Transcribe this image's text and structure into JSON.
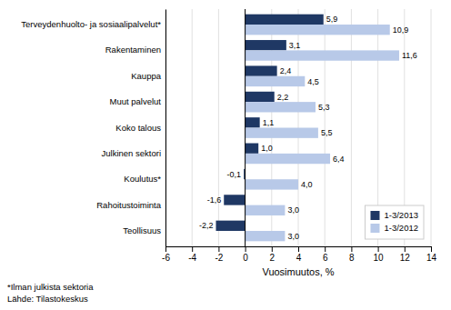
{
  "chart_data": {
    "type": "bar",
    "orientation": "horizontal",
    "categories": [
      "Terveydenhuolto- ja sosiaalipalvelut*",
      "Rakentaminen",
      "Kauppa",
      "Muut palvelut",
      "Koko talous",
      "Julkinen sektori",
      "Koulutus*",
      "Rahoitustoiminta",
      "Teollisuus"
    ],
    "series": [
      {
        "name": "1-3/2013",
        "color": "#1f3864",
        "values": [
          5.9,
          3.1,
          2.4,
          2.2,
          1.1,
          1.0,
          -0.1,
          -1.6,
          -2.2
        ],
        "value_labels": [
          "5,9",
          "3,1",
          "2,4",
          "2,2",
          "1,1",
          "1,0",
          "-0,1",
          "-1,6",
          "-2,2"
        ]
      },
      {
        "name": "1-3/2012",
        "color": "#b8c9e8",
        "values": [
          10.9,
          11.6,
          4.5,
          5.3,
          5.5,
          6.4,
          4.0,
          3.0,
          3.0
        ],
        "value_labels": [
          "10,9",
          "11,6",
          "4,5",
          "5,3",
          "5,5",
          "6,4",
          "4,0",
          "3,0",
          "3,0"
        ]
      }
    ],
    "xlabel": "Vuosimuutos, %",
    "xlim": [
      -6,
      14
    ],
    "xticks": [
      -6,
      -4,
      -2,
      0,
      2,
      4,
      6,
      8,
      10,
      12,
      14
    ],
    "grid": true,
    "legend": "lower right",
    "data_labels": true,
    "annotations": [
      "*Ilman julkista sektoria",
      "Lähde: Tilastokeskus"
    ]
  }
}
